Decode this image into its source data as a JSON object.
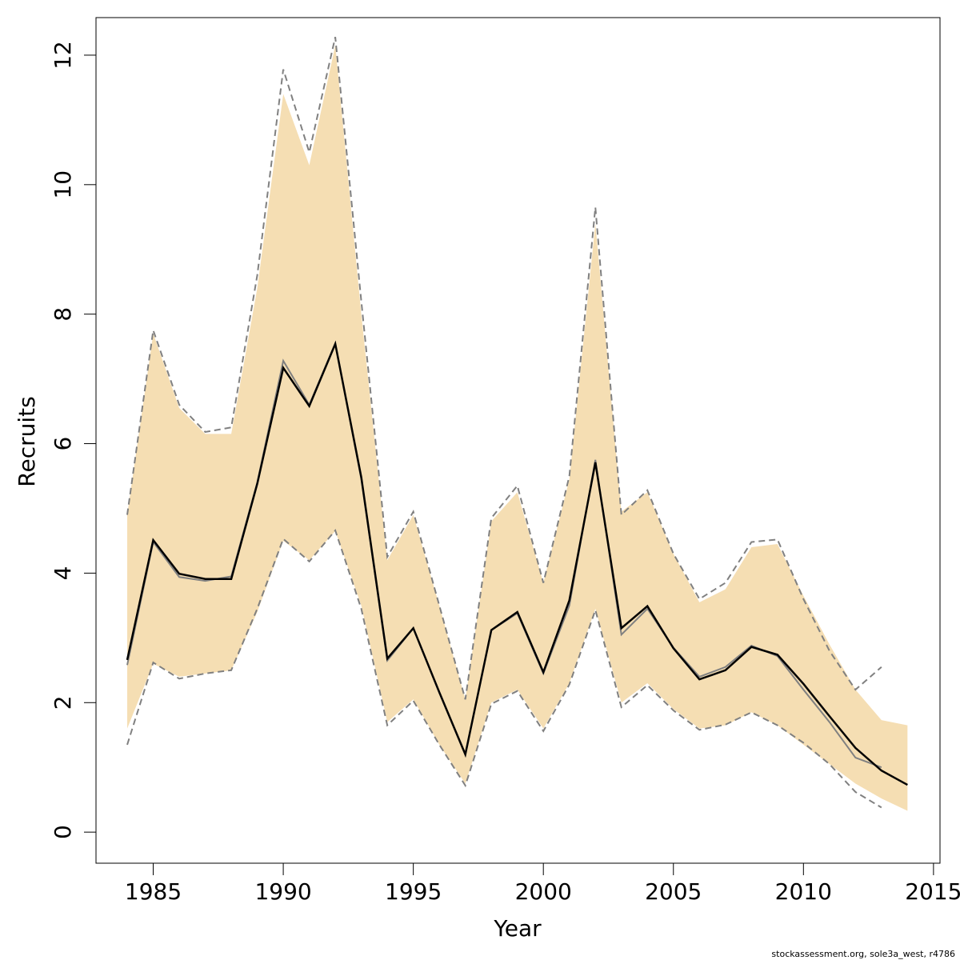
{
  "chart_data": {
    "type": "line",
    "xlabel": "Year",
    "ylabel": "Recruits",
    "footer": "stockassessment.org, sole3a_west, r4786",
    "x": [
      1984,
      1985,
      1986,
      1987,
      1988,
      1989,
      1990,
      1991,
      1992,
      1993,
      1994,
      1995,
      1996,
      1997,
      1998,
      1999,
      2000,
      2001,
      2002,
      2003,
      2004,
      2005,
      2006,
      2007,
      2008,
      2009,
      2010,
      2011,
      2012,
      2013,
      2014
    ],
    "band": {
      "color": "#f5deb3",
      "upper": [
        4.9,
        7.7,
        6.55,
        6.15,
        6.15,
        8.4,
        11.4,
        10.3,
        12.15,
        8.0,
        4.2,
        4.9,
        3.5,
        2.05,
        4.8,
        5.25,
        3.85,
        5.45,
        9.4,
        4.95,
        5.25,
        4.3,
        3.55,
        3.75,
        4.4,
        4.45,
        3.65,
        2.9,
        2.2,
        1.73,
        1.65
      ],
      "lower": [
        1.6,
        2.6,
        2.4,
        2.45,
        2.5,
        3.4,
        4.5,
        4.2,
        4.65,
        3.5,
        1.7,
        2.05,
        1.35,
        0.75,
        2.0,
        2.2,
        1.6,
        2.3,
        3.45,
        2.0,
        2.3,
        1.9,
        1.6,
        1.65,
        1.85,
        1.65,
        1.35,
        1.05,
        0.75,
        0.52,
        0.33
      ]
    },
    "series": [
      {
        "color": "#808080",
        "style": "dashed",
        "values": [
          4.9,
          7.75,
          6.6,
          6.18,
          6.25,
          8.6,
          11.78,
          10.5,
          12.28,
          8.2,
          4.25,
          4.95,
          3.5,
          2.05,
          4.85,
          5.35,
          3.85,
          5.5,
          9.65,
          4.9,
          5.28,
          4.3,
          3.6,
          3.85,
          4.48,
          4.52,
          3.6,
          2.8,
          2.2,
          2.55,
          null
        ]
      },
      {
        "color": "#808080",
        "style": "dashed",
        "values": [
          1.35,
          2.62,
          2.37,
          2.45,
          2.5,
          3.45,
          4.53,
          4.18,
          4.66,
          3.45,
          1.65,
          2.03,
          1.35,
          0.72,
          1.98,
          2.18,
          1.56,
          2.28,
          3.43,
          1.93,
          2.27,
          1.88,
          1.58,
          1.66,
          1.85,
          1.65,
          1.38,
          1.05,
          0.62,
          0.38,
          null
        ]
      },
      {
        "color": "#808080",
        "style": "solid",
        "values": [
          2.58,
          4.48,
          3.94,
          3.88,
          3.95,
          5.4,
          7.28,
          6.6,
          7.55,
          5.45,
          2.65,
          3.15,
          2.15,
          1.2,
          3.12,
          3.38,
          2.45,
          3.5,
          5.75,
          3.05,
          3.45,
          2.85,
          2.4,
          2.55,
          2.88,
          2.72,
          2.2,
          1.7,
          1.15,
          1.0,
          null
        ]
      },
      {
        "color": "#000000",
        "style": "solid",
        "values": [
          2.66,
          4.51,
          3.99,
          3.91,
          3.91,
          5.38,
          7.17,
          6.58,
          7.54,
          5.48,
          2.68,
          3.15,
          2.16,
          1.2,
          3.12,
          3.4,
          2.47,
          3.58,
          5.71,
          3.15,
          3.49,
          2.84,
          2.36,
          2.5,
          2.86,
          2.74,
          2.29,
          1.79,
          1.3,
          0.95,
          0.73
        ]
      }
    ],
    "xlim": [
      1982.8,
      2015.25
    ],
    "xticks": [
      1985,
      1990,
      1995,
      2000,
      2005,
      2010,
      2015
    ],
    "ylim": [
      -0.48,
      12.58
    ],
    "yticks": [
      0,
      2,
      4,
      6,
      8,
      10,
      12
    ]
  }
}
